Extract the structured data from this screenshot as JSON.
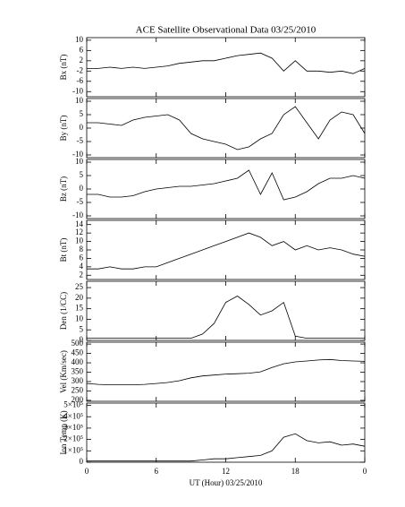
{
  "chart_data": [
    {
      "type": "line",
      "title": "ACE Satellite Observational Data  03/25/2010",
      "ylabel": "Bx (nT)",
      "color": "#000000",
      "x": [
        0,
        1,
        2,
        3,
        4,
        5,
        6,
        7,
        8,
        9,
        10,
        11,
        12,
        13,
        14,
        15,
        16,
        17,
        18,
        19,
        20,
        21,
        22,
        23,
        24
      ],
      "values": [
        -1,
        -1,
        -0.5,
        -1,
        -0.5,
        -1,
        -0.5,
        0,
        1,
        1.5,
        2,
        2,
        3,
        4,
        4.5,
        5,
        3,
        -2,
        2,
        -2,
        -2,
        -2.5,
        -2,
        -3,
        -1
      ],
      "xlim": [
        0,
        24
      ],
      "xticks": [
        0,
        6,
        12,
        18,
        {
          "value": 24,
          "label": "0"
        }
      ],
      "ylim": [
        -12,
        11
      ],
      "yticks": [
        -10,
        -6,
        -2,
        2,
        6,
        10
      ]
    },
    {
      "type": "line",
      "ylabel": "By (nT)",
      "color": "#000000",
      "x": [
        0,
        1,
        2,
        3,
        4,
        5,
        6,
        7,
        8,
        9,
        10,
        11,
        12,
        13,
        14,
        15,
        16,
        17,
        18,
        19,
        20,
        21,
        22,
        23,
        24
      ],
      "values": [
        2,
        2,
        1.5,
        1,
        3,
        4,
        4.5,
        5,
        3,
        -2,
        -4,
        -5,
        -6,
        -8,
        -7,
        -4,
        -2,
        5,
        8,
        2,
        -4,
        3,
        6,
        5,
        -2
      ],
      "xlim": [
        0,
        24
      ],
      "xticks": [
        0,
        6,
        12,
        18,
        {
          "value": 24,
          "label": "0"
        }
      ],
      "ylim": [
        -11,
        11
      ],
      "yticks": [
        -10,
        -5,
        0,
        5,
        10
      ]
    },
    {
      "type": "line",
      "ylabel": "Bz (nT)",
      "color": "#000000",
      "x": [
        0,
        1,
        2,
        3,
        4,
        5,
        6,
        7,
        8,
        9,
        10,
        11,
        12,
        13,
        14,
        15,
        16,
        17,
        18,
        19,
        20,
        21,
        22,
        23,
        24
      ],
      "values": [
        -2,
        -2,
        -3,
        -3,
        -2.5,
        -1,
        0,
        0.5,
        1,
        1,
        1.5,
        2,
        3,
        4,
        7,
        -2,
        6,
        -4,
        -3,
        -1,
        2,
        4,
        4,
        5,
        4
      ],
      "xlim": [
        0,
        24
      ],
      "xticks": [
        0,
        6,
        12,
        18,
        {
          "value": 24,
          "label": "0"
        }
      ],
      "ylim": [
        -11,
        11
      ],
      "yticks": [
        -10,
        -5,
        0,
        5,
        10
      ]
    },
    {
      "type": "line",
      "ylabel": "Bt (nT)",
      "color": "#000000",
      "x": [
        0,
        1,
        2,
        3,
        4,
        5,
        6,
        7,
        8,
        9,
        10,
        11,
        12,
        13,
        14,
        15,
        16,
        17,
        18,
        19,
        20,
        21,
        22,
        23,
        24
      ],
      "values": [
        3.5,
        3.5,
        4,
        3.5,
        3.5,
        4,
        4,
        5,
        6,
        7,
        8,
        9,
        10,
        11,
        12,
        11,
        9,
        10,
        8,
        9,
        8,
        8.5,
        8,
        7,
        6.5
      ],
      "xlim": [
        0,
        24
      ],
      "xticks": [
        0,
        6,
        12,
        18,
        {
          "value": 24,
          "label": "0"
        }
      ],
      "ylim": [
        1,
        15
      ],
      "yticks": [
        2,
        4,
        6,
        8,
        10,
        12,
        14
      ]
    },
    {
      "type": "line",
      "ylabel": "Den (1/CC)",
      "color": "#000000",
      "x": [
        0,
        1,
        2,
        3,
        4,
        5,
        6,
        7,
        8,
        9,
        10,
        11,
        12,
        13,
        14,
        15,
        16,
        17,
        18,
        19,
        20,
        21,
        22,
        23,
        24
      ],
      "values": [
        1,
        1,
        1,
        1,
        1,
        1,
        1,
        1,
        1,
        1,
        3,
        8,
        18,
        21,
        17,
        12,
        14,
        18,
        2,
        1,
        1,
        1,
        1,
        1,
        1
      ],
      "xlim": [
        0,
        24
      ],
      "xticks": [
        0,
        6,
        12,
        18,
        {
          "value": 24,
          "label": "0"
        }
      ],
      "ylim": [
        0,
        28
      ],
      "yticks": [
        0,
        5,
        10,
        15,
        20,
        25
      ]
    },
    {
      "type": "line",
      "ylabel": "Vel (Km/sec)",
      "color": "#000000",
      "x": [
        0,
        1,
        2,
        3,
        4,
        5,
        6,
        7,
        8,
        9,
        10,
        11,
        12,
        13,
        14,
        15,
        16,
        17,
        18,
        19,
        20,
        21,
        22,
        23,
        24
      ],
      "values": [
        290,
        285,
        283,
        283,
        283,
        285,
        290,
        295,
        305,
        320,
        330,
        335,
        340,
        342,
        345,
        352,
        375,
        395,
        405,
        410,
        415,
        418,
        412,
        410,
        408
      ],
      "xlim": [
        0,
        24
      ],
      "xticks": [
        0,
        6,
        12,
        18,
        {
          "value": 24,
          "label": "0"
        }
      ],
      "ylim": [
        195,
        510
      ],
      "yticks": [
        200,
        250,
        300,
        350,
        400,
        450,
        500
      ]
    },
    {
      "type": "line",
      "ylabel": "Ion Temp (K)",
      "xlabel": "UT (Hour)  03/25/2010",
      "color": "#000000",
      "x": [
        0,
        1,
        2,
        3,
        4,
        5,
        6,
        7,
        8,
        9,
        10,
        11,
        12,
        13,
        14,
        15,
        16,
        17,
        18,
        19,
        20,
        21,
        22,
        23,
        24
      ],
      "values": [
        10000,
        10000,
        10000,
        10000,
        10000,
        10000,
        10000,
        10000,
        10000,
        10000,
        20000,
        30000,
        30000,
        40000,
        50000,
        60000,
        100000,
        220000,
        250000,
        190000,
        170000,
        180000,
        150000,
        160000,
        140000
      ],
      "xlim": [
        0,
        24
      ],
      "xticks": [
        0,
        6,
        12,
        18,
        {
          "value": 24,
          "label": "0"
        }
      ],
      "ylim": [
        0,
        520000
      ],
      "yticks": [
        0,
        {
          "value": 100000,
          "label": "1×10⁵"
        },
        {
          "value": 200000,
          "label": "2×10⁵"
        },
        {
          "value": 300000,
          "label": "3×10⁵"
        },
        {
          "value": 400000,
          "label": "4×10⁵"
        },
        {
          "value": 500000,
          "label": "5×10⁵"
        }
      ]
    }
  ]
}
